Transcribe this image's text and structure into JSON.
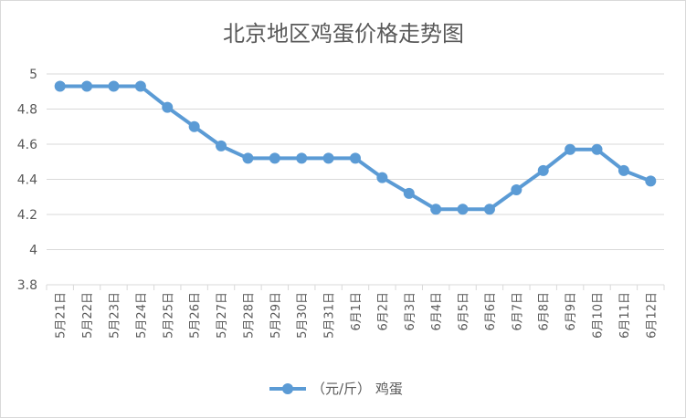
{
  "chart_data": {
    "type": "line",
    "title": "北京地区鸡蛋价格走势图",
    "xlabel": "",
    "ylabel": "",
    "categories": [
      "5月21日",
      "5月22日",
      "5月23日",
      "5月24日",
      "5月25日",
      "5月26日",
      "5月27日",
      "5月28日",
      "5月29日",
      "5月30日",
      "5月31日",
      "6月1日",
      "6月2日",
      "6月3日",
      "6月4日",
      "6月5日",
      "6月6日",
      "6月7日",
      "6月8日",
      "6月9日",
      "6月10日",
      "6月11日",
      "6月12日"
    ],
    "series": [
      {
        "name": "（元/斤） 鸡蛋",
        "values": [
          4.93,
          4.93,
          4.93,
          4.93,
          4.81,
          4.7,
          4.59,
          4.52,
          4.52,
          4.52,
          4.52,
          4.52,
          4.41,
          4.32,
          4.23,
          4.23,
          4.23,
          4.34,
          4.45,
          4.57,
          4.57,
          4.45,
          4.39
        ]
      }
    ],
    "ylim": [
      3.8,
      5
    ],
    "yticks": [
      "3.8",
      "4",
      "4.2",
      "4.4",
      "4.6",
      "4.8",
      "5"
    ],
    "grid": true,
    "legend_position": "bottom",
    "colors": {
      "series": "#5b9bd5",
      "text": "#595959",
      "grid": "#d9d9d9"
    }
  }
}
